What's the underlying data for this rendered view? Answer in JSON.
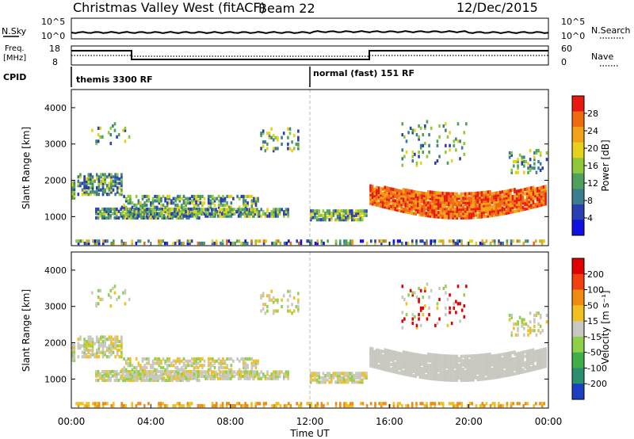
{
  "header": {
    "station": "Christmas Valley West (fitACF)",
    "beam": "Beam 22",
    "date": "12/Dec/2015"
  },
  "top_panels": {
    "nsky_label": "N.Sky",
    "nsearch_label": "N.Search",
    "nsky_ticks": [
      "10^5",
      "10^0"
    ],
    "nsearch_ticks": [
      "10^5",
      "10^0"
    ],
    "freq_label_line1": "Freq.",
    "freq_label_line2": "[MHz]",
    "freq_ticks": [
      "18",
      "8"
    ],
    "nave_label": "Nave",
    "nave_ticks": [
      "60",
      "0"
    ],
    "cpid_label": "CPID",
    "cpid_segments": [
      {
        "name": "themis 3300 RF",
        "start_hour": 0
      },
      {
        "name": "normal (fast) 151 RF",
        "start_hour": 12
      }
    ]
  },
  "chart_data": [
    {
      "type": "heatmap",
      "title": "Power",
      "xlabel": "",
      "ylabel": "Slant Range [km]",
      "xlim_hours": [
        0,
        24
      ],
      "ylim": [
        200,
        4500
      ],
      "x_tick_labels": [
        "00:00",
        "04:00",
        "08:00",
        "12:00",
        "16:00",
        "20:00",
        "00:00"
      ],
      "y_ticks": [
        1000,
        2000,
        3000,
        4000
      ],
      "colorbar": {
        "label": "Power [dB]",
        "ticks": [
          4,
          8,
          12,
          16,
          20,
          24,
          28
        ],
        "colors": [
          "#1010e0",
          "#2a3fb0",
          "#3b7f8f",
          "#4fa05a",
          "#8fc83a",
          "#e6d21a",
          "#f2a21a",
          "#f06a10",
          "#e81a10"
        ]
      }
    },
    {
      "type": "heatmap",
      "title": "Velocity",
      "xlabel": "Time UT",
      "ylabel": "Slant Range [km]",
      "xlim_hours": [
        0,
        24
      ],
      "ylim": [
        200,
        4500
      ],
      "x_tick_labels": [
        "00:00",
        "04:00",
        "08:00",
        "12:00",
        "16:00",
        "20:00",
        "00:00"
      ],
      "y_ticks": [
        1000,
        2000,
        3000,
        4000
      ],
      "colorbar": {
        "label": "Velocity [m s⁻¹]",
        "ticks": [
          "200",
          "100",
          "50",
          "15",
          "-15",
          "-50",
          "-100",
          "-200"
        ],
        "colors": [
          "#1a3fbf",
          "#2a8f6f",
          "#3faf4a",
          "#8fd04a",
          "#c8c8c0",
          "#f0c020",
          "#f08a10",
          "#f04010",
          "#e00000"
        ]
      }
    }
  ],
  "footer": {
    "xlabel": "Time UT"
  }
}
